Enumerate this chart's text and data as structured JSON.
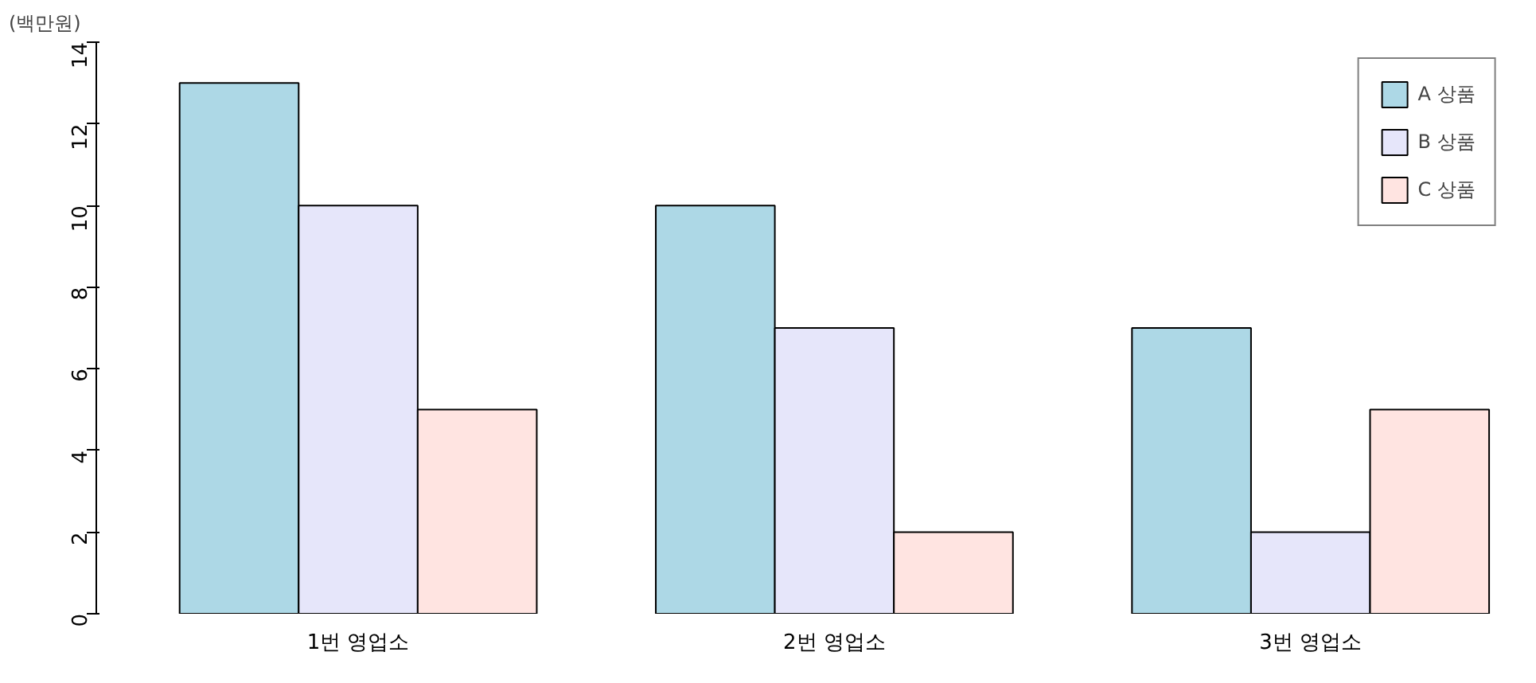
{
  "chart_data": {
    "type": "bar",
    "ylabel": "(백만원)",
    "categories": [
      "1번 영업소",
      "2번 영업소",
      "3번 영업소"
    ],
    "series": [
      {
        "name": "A 상품",
        "color": "#add8e6",
        "values": [
          13,
          10,
          7
        ]
      },
      {
        "name": "B 상품",
        "color": "#e6e6fa",
        "values": [
          10,
          7,
          2
        ]
      },
      {
        "name": "C 상품",
        "color": "#ffe4e1",
        "values": [
          5,
          2,
          5
        ]
      }
    ],
    "ylim": [
      0,
      14
    ],
    "yticks": [
      0,
      2,
      4,
      6,
      8,
      10,
      12,
      14
    ],
    "grid": false,
    "legend": "top right"
  }
}
